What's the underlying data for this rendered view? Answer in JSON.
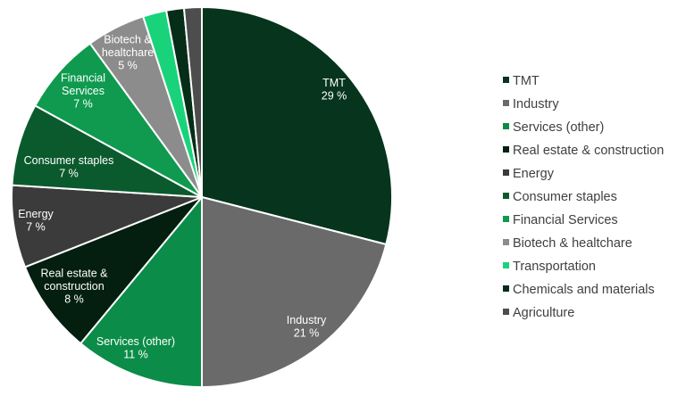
{
  "chart_data": {
    "type": "pie",
    "title": "",
    "unit": "%",
    "legend_position": "right",
    "start_angle_deg": 0,
    "direction": "clockwise",
    "slices": [
      {
        "name": "TMT",
        "value": 29,
        "color": "#06341c",
        "label_lines": [
          "TMT"
        ],
        "value_label": "29 %"
      },
      {
        "name": "Industry",
        "value": 21,
        "color": "#6a6a6a",
        "label_lines": [
          "Industry"
        ],
        "value_label": "21 %"
      },
      {
        "name": "Services (other)",
        "value": 11,
        "color": "#0b8c48",
        "label_lines": [
          "Services (other)"
        ],
        "value_label": "11 %"
      },
      {
        "name": "Real estate & construction",
        "value": 8,
        "color": "#041f10",
        "label_lines": [
          "Real estate &",
          "construction"
        ],
        "value_label": "8 %"
      },
      {
        "name": "Energy",
        "value": 7,
        "color": "#3b3b3b",
        "label_lines": [
          "Energy"
        ],
        "value_label": "7 %"
      },
      {
        "name": "Consumer staples",
        "value": 7,
        "color": "#0b5a2e",
        "label_lines": [
          "Consumer staples"
        ],
        "value_label": "7 %"
      },
      {
        "name": "Financial Services",
        "value": 7,
        "color": "#0f9a4f",
        "label_lines": [
          "Financial",
          "Services"
        ],
        "value_label": "7 %"
      },
      {
        "name": "Biotech & healtchare",
        "value": 5,
        "color": "#8c8c8c",
        "label_lines": [
          "Biotech &",
          "healtchare"
        ],
        "value_label": "5 %"
      },
      {
        "name": "Transportation",
        "value": 2,
        "color": "#19d37a",
        "label_lines": [],
        "value_label": ""
      },
      {
        "name": "Chemicals and materials",
        "value": 1.5,
        "color": "#062d17",
        "label_lines": [],
        "value_label": ""
      },
      {
        "name": "Agriculture",
        "value": 1.5,
        "color": "#4d4d4d",
        "label_lines": [],
        "value_label": ""
      }
    ]
  }
}
